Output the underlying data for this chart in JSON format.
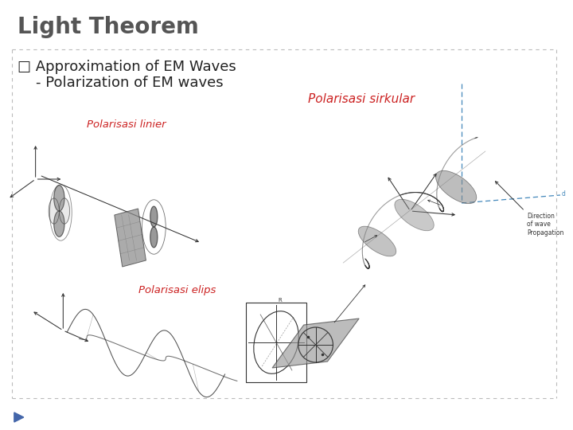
{
  "title": "Light Theorem",
  "title_fontsize": 20,
  "title_color": "#555555",
  "background_color": "#ffffff",
  "dashed_line_color": "#bbbbbb",
  "bullet_text_line1": "□ Approximation of EM Waves",
  "bullet_text_line2": "    - Polarization of EM waves",
  "bullet_fontsize": 13,
  "bullet_color": "#222222",
  "label_linier": "Polarisasi linier",
  "label_elips": "Polarisasi elips",
  "label_sirkular": "Polarisasi sirkular",
  "label_color": "#cc2222",
  "label_fontsize": 9.5,
  "play_button_color": "#4466aa",
  "direction_text": "Direction\nof wave\nPropagation",
  "dir_text_fontsize": 5.5
}
